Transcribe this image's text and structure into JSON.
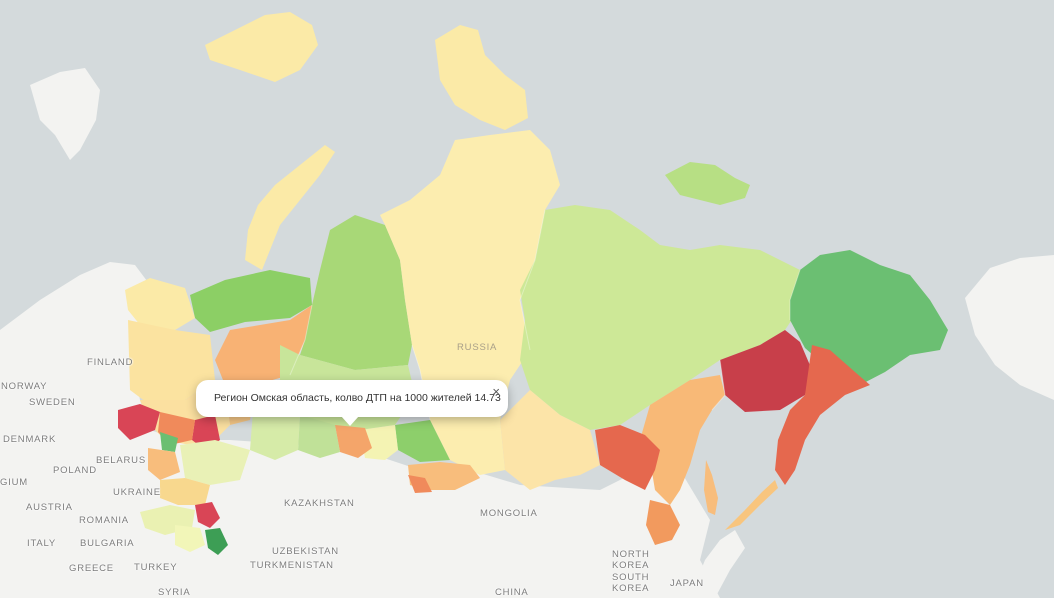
{
  "map": {
    "country_label": "RUSSIA",
    "place_labels": [
      {
        "name": "label-finland",
        "text": "FINLAND"
      },
      {
        "name": "label-norway",
        "text": "NORWAY"
      },
      {
        "name": "label-sweden",
        "text": "SWEDEN"
      },
      {
        "name": "label-denmark",
        "text": "DENMARK"
      },
      {
        "name": "label-belarus",
        "text": "BELARUS"
      },
      {
        "name": "label-poland",
        "text": "POLAND"
      },
      {
        "name": "label-belgium",
        "text": "GIUM"
      },
      {
        "name": "label-ukraine",
        "text": "UKRAINE"
      },
      {
        "name": "label-austria",
        "text": "AUSTRIA"
      },
      {
        "name": "label-romania",
        "text": "ROMANIA"
      },
      {
        "name": "label-italy",
        "text": "ITALY"
      },
      {
        "name": "label-bulgaria",
        "text": "BULGARIA"
      },
      {
        "name": "label-greece",
        "text": "GREECE"
      },
      {
        "name": "label-turkey",
        "text": "TURKEY"
      },
      {
        "name": "label-syria",
        "text": "SYRIA"
      },
      {
        "name": "label-kazakhstan",
        "text": "KAZAKHSTAN"
      },
      {
        "name": "label-uzbekistan",
        "text": "UZBEKISTAN"
      },
      {
        "name": "label-turkmenistan",
        "text": "TURKMENISTAN"
      },
      {
        "name": "label-mongolia",
        "text": "MONGOLIA"
      },
      {
        "name": "label-china",
        "text": "CHINA"
      },
      {
        "name": "label-north-korea-1",
        "text": "NORTH"
      },
      {
        "name": "label-north-korea-2",
        "text": "KOREA"
      },
      {
        "name": "label-south-korea-1",
        "text": "SOUTH"
      },
      {
        "name": "label-south-korea-2",
        "text": "KOREA"
      },
      {
        "name": "label-japan",
        "text": "JAPAN"
      }
    ],
    "colors": {
      "ocean": "#d4dadc",
      "land": "#f2f2f2",
      "level_low": "#1a9641",
      "level_mid_low": "#a6d96a",
      "level_mid": "#ffffbf",
      "level_mid_high": "#fdae61",
      "level_high": "#d7191c"
    }
  },
  "tooltip": {
    "text": "Регион Омская область, колво ДТП на 1000 жителей 14.73",
    "close_label": "×"
  }
}
